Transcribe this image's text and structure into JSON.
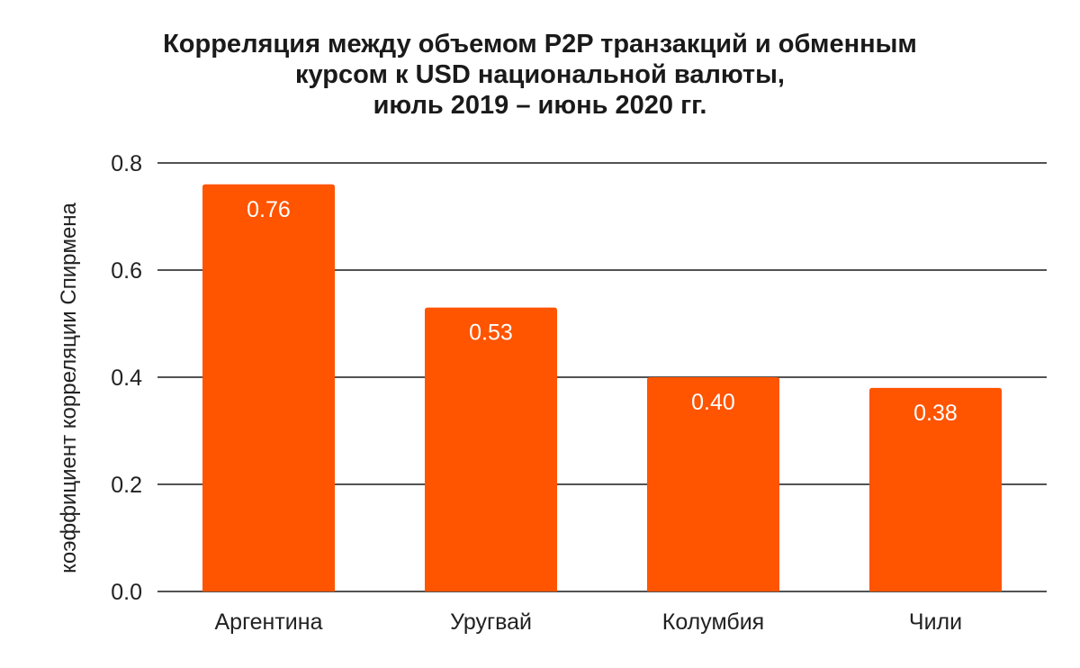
{
  "chart_data": {
    "type": "bar",
    "title_lines": [
      "Корреляция между объемом P2P транзакций и обменным",
      "курсом к USD национальной валюты,",
      "июль 2019 – июнь 2020 гг."
    ],
    "xlabel": "",
    "ylabel": "коэффициент корреляции Спирмена",
    "categories": [
      "Аргентина",
      "Уругвай",
      "Колумбия",
      "Чили"
    ],
    "values": [
      0.76,
      0.53,
      0.4,
      0.38
    ],
    "data_labels": [
      "0.76",
      "0.53",
      "0.40",
      "0.38"
    ],
    "ylim": [
      0,
      0.8
    ],
    "yticks": [
      0.0,
      0.2,
      0.4,
      0.6,
      0.8
    ],
    "ytick_labels": [
      "0.0",
      "0.2",
      "0.4",
      "0.6",
      "0.8"
    ],
    "grid": true,
    "legend": "none",
    "colors": {
      "bar": "#FF5400",
      "grid": "#1a1a1a",
      "text": "#222222"
    }
  }
}
